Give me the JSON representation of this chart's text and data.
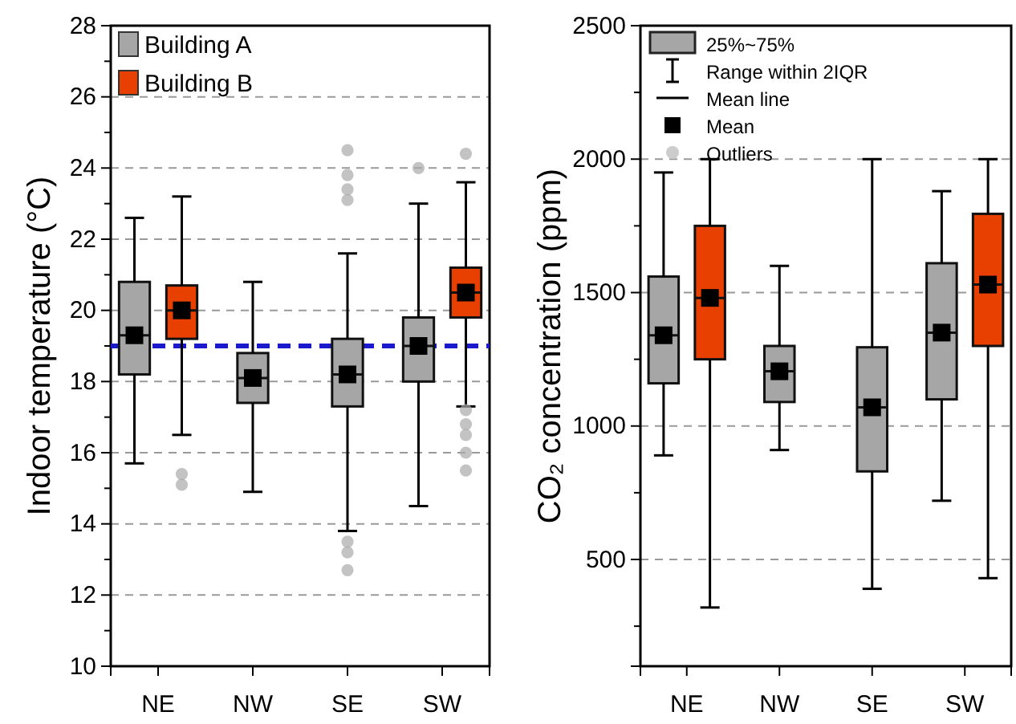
{
  "chart_data": [
    {
      "type": "box",
      "ylabel": "Indoor temperature (°C)",
      "categories": [
        "NE",
        "NW",
        "SE",
        "SW"
      ],
      "ylim": [
        10,
        28
      ],
      "yticks": [
        10,
        {
          "value": 11,
          "label": null
        },
        12,
        {
          "value": 13,
          "label": null
        },
        14,
        {
          "value": 15,
          "label": null
        },
        16,
        {
          "value": 17,
          "label": null
        },
        18,
        {
          "value": 19,
          "label": null
        },
        20,
        {
          "value": 21,
          "label": null
        },
        22,
        {
          "value": 23,
          "label": null
        },
        24,
        {
          "value": 25,
          "label": null
        },
        26,
        {
          "value": 27,
          "label": null
        },
        28
      ],
      "grid": "y",
      "legend": "top left",
      "ref_lines": [
        {
          "axis": "y",
          "value": 19,
          "color": "#1a1acc",
          "line_style": "dashed"
        }
      ],
      "series": [
        {
          "name": "Building A",
          "color": "#a6a6a6",
          "boxes": [
            {
              "low": 15.7,
              "q1": 18.2,
              "median": 19.3,
              "q3": 20.8,
              "high": 22.6,
              "mean": 19.3
            },
            {
              "low": 14.9,
              "q1": 17.4,
              "median": 18.1,
              "q3": 18.8,
              "high": 20.8,
              "mean": 18.1
            },
            {
              "low": 13.8,
              "q1": 17.3,
              "median": 18.2,
              "q3": 19.2,
              "high": 21.6,
              "mean": 18.2,
              "outliers": [
                24.5,
                23.8,
                23.4,
                23.1,
                13.5,
                13.2,
                12.7
              ]
            },
            {
              "low": 14.5,
              "q1": 18.0,
              "median": 19.0,
              "q3": 19.8,
              "high": 23.0,
              "mean": 19.0,
              "outliers": [
                24.0
              ]
            }
          ]
        },
        {
          "name": "Building B",
          "color": "#e84000",
          "boxes": [
            {
              "low": 16.5,
              "q1": 19.2,
              "median": 20.0,
              "q3": 20.7,
              "high": 23.2,
              "mean": 20.0,
              "outliers": [
                15.4,
                15.1
              ]
            },
            null,
            null,
            {
              "low": 17.3,
              "q1": 19.8,
              "median": 20.5,
              "q3": 21.2,
              "high": 23.6,
              "mean": 20.5,
              "outliers": [
                24.4,
                17.2,
                16.8,
                16.5,
                16.0,
                15.5
              ]
            }
          ]
        }
      ]
    },
    {
      "type": "box",
      "ylabel": "CO₂ concentration (ppm)",
      "categories": [
        "NE",
        "NW",
        "SE",
        "SW"
      ],
      "ylim": [
        100,
        2500
      ],
      "yticks": [
        {
          "value": 250,
          "label": null
        },
        500,
        {
          "value": 750,
          "label": null
        },
        1000,
        {
          "value": 1250,
          "label": null
        },
        1500,
        {
          "value": 1750,
          "label": null
        },
        2000,
        {
          "value": 2250,
          "label": null
        },
        2500
      ],
      "grid": "y",
      "annotations": [
        "25%~75%",
        "Range within 2IQR",
        "Mean line",
        "Mean",
        "Outliers"
      ],
      "series": [
        {
          "color": "#a6a6a6",
          "boxes": [
            {
              "low": 890,
              "q1": 1160,
              "median": 1340,
              "q3": 1560,
              "high": 1950,
              "mean": 1340
            },
            {
              "low": 910,
              "q1": 1090,
              "median": 1205,
              "q3": 1300,
              "high": 1600,
              "mean": 1205
            },
            {
              "low": 390,
              "q1": 830,
              "median": 1070,
              "q3": 1295,
              "high": 2000,
              "mean": 1070
            },
            {
              "low": 720,
              "q1": 1100,
              "median": 1350,
              "q3": 1610,
              "high": 1880,
              "mean": 1350
            }
          ]
        },
        {
          "color": "#e84000",
          "boxes": [
            {
              "low": 320,
              "q1": 1250,
              "median": 1480,
              "q3": 1750,
              "high": 2000,
              "mean": 1480
            },
            null,
            null,
            {
              "low": 430,
              "q1": 1300,
              "median": 1530,
              "q3": 1795,
              "high": 2000,
              "mean": 1530
            }
          ]
        }
      ]
    }
  ]
}
